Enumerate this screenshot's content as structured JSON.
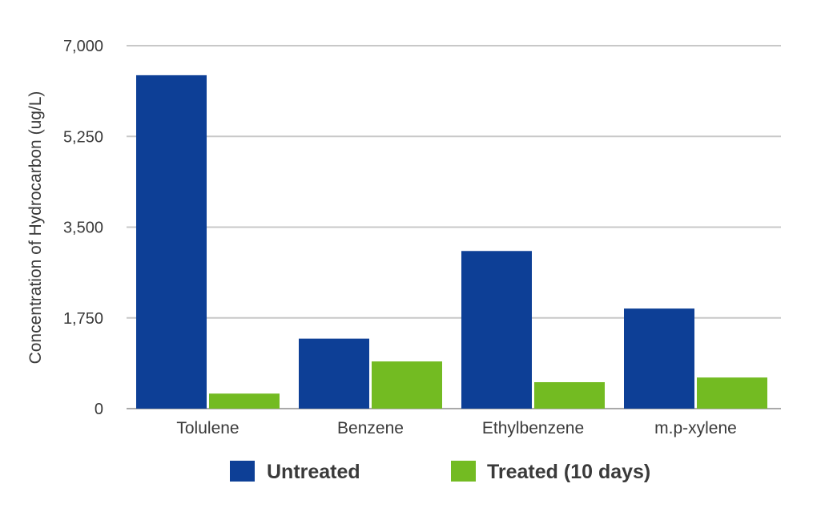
{
  "chart_data": {
    "type": "bar",
    "title": "",
    "xlabel": "",
    "ylabel": "Concentration of Hydrocarbon (ug/L)",
    "ylim": [
      0,
      7000
    ],
    "yticks": [
      0,
      1750,
      3500,
      5250,
      7000
    ],
    "ytick_labels": [
      "0",
      "1,750",
      "3,500",
      "5,250",
      "7,000"
    ],
    "categories": [
      "Tolulene",
      "Benzene",
      "Ethylbenzene",
      "m.p-xylene"
    ],
    "series": [
      {
        "name": "Untreated",
        "color": "#0d3f96",
        "values": [
          6430,
          1350,
          3040,
          1930
        ]
      },
      {
        "name": "Treated (10 days)",
        "color": "#73bb22",
        "values": [
          290,
          910,
          510,
          600
        ]
      }
    ],
    "grid": true,
    "legend_position": "bottom"
  }
}
